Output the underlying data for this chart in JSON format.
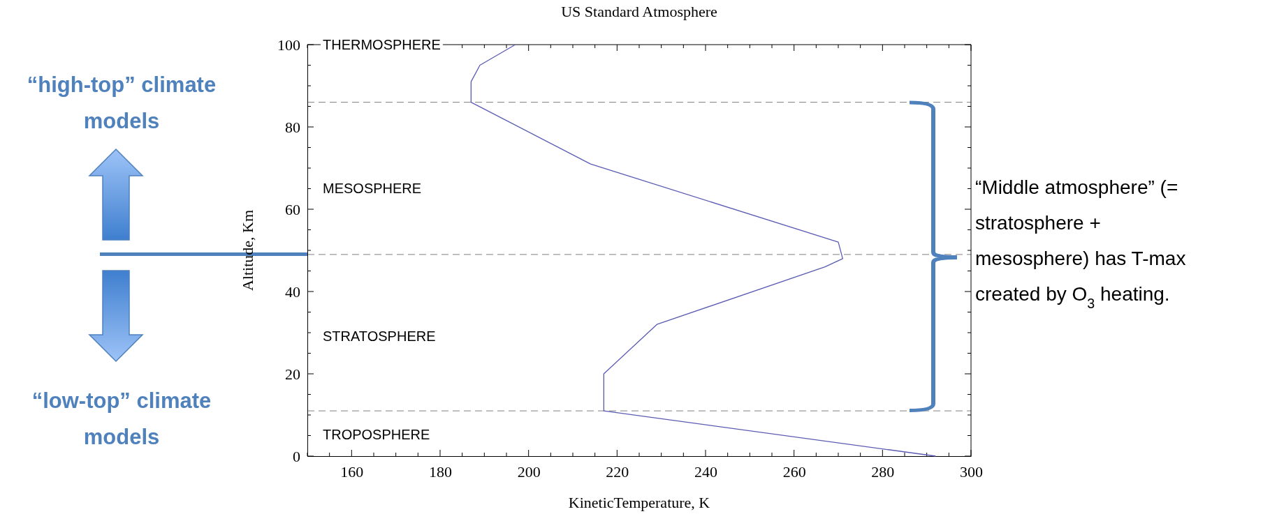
{
  "chart_data": {
    "type": "line",
    "title": "US Standard Atmosphere",
    "xlabel": "KineticTemperature, K",
    "ylabel": "Altitude, Km",
    "x": [
      292,
      217,
      217,
      229,
      267,
      271,
      270,
      214,
      187,
      187,
      189,
      197
    ],
    "series": [
      {
        "color": "#5a5ab4",
        "values": [
          0,
          11,
          20,
          32,
          46,
          48,
          52,
          71,
          86,
          91,
          95,
          100
        ]
      }
    ],
    "xlim": [
      150,
      300
    ],
    "ylim": [
      0,
      100
    ],
    "xticks": [
      {
        "value": 150,
        "label": null
      },
      {
        "value": 155,
        "label": null
      },
      160,
      {
        "value": 165,
        "label": null
      },
      {
        "value": 170,
        "label": null
      },
      {
        "value": 175,
        "label": null
      },
      180,
      {
        "value": 185,
        "label": null
      },
      {
        "value": 190,
        "label": null
      },
      {
        "value": 195,
        "label": null
      },
      200,
      {
        "value": 205,
        "label": null
      },
      {
        "value": 210,
        "label": null
      },
      {
        "value": 215,
        "label": null
      },
      220,
      {
        "value": 225,
        "label": null
      },
      {
        "value": 230,
        "label": null
      },
      {
        "value": 235,
        "label": null
      },
      240,
      {
        "value": 245,
        "label": null
      },
      {
        "value": 250,
        "label": null
      },
      {
        "value": 255,
        "label": null
      },
      260,
      {
        "value": 265,
        "label": null
      },
      {
        "value": 270,
        "label": null
      },
      {
        "value": 275,
        "label": null
      },
      280,
      {
        "value": 285,
        "label": null
      },
      {
        "value": 290,
        "label": null
      },
      {
        "value": 295,
        "label": null
      },
      300
    ],
    "yticks": [
      0,
      {
        "value": 5,
        "label": null
      },
      {
        "value": 10,
        "label": null
      },
      {
        "value": 15,
        "label": null
      },
      20,
      {
        "value": 25,
        "label": null
      },
      {
        "value": 30,
        "label": null
      },
      {
        "value": 35,
        "label": null
      },
      40,
      {
        "value": 45,
        "label": null
      },
      {
        "value": 50,
        "label": null
      },
      {
        "value": 55,
        "label": null
      },
      60,
      {
        "value": 65,
        "label": null
      },
      {
        "value": 70,
        "label": null
      },
      {
        "value": 75,
        "label": null
      },
      80,
      {
        "value": 85,
        "label": null
      },
      {
        "value": 90,
        "label": null
      },
      {
        "value": 95,
        "label": null
      },
      100
    ],
    "grid": false,
    "marker": "none",
    "line_style": "solid",
    "ref_lines": [
      {
        "axis": "y",
        "value": 86,
        "color": "#808080",
        "line_style": "dashed"
      },
      {
        "axis": "y",
        "value": 49,
        "color": "#808080",
        "line_style": "dashed"
      },
      {
        "axis": "y",
        "value": 11,
        "color": "#808080",
        "line_style": "dashed"
      }
    ],
    "annotations": [
      "THERMOSPHERE",
      "MESOSPHERE",
      "STRATOSPHERE",
      "TROPOSPHERE",
      "“high-top” climate models",
      "“low-top” climate models",
      "“Middle atmosphere” (= stratosphere + mesosphere) has T-max created by O$_{3}$ heating."
    ]
  }
}
